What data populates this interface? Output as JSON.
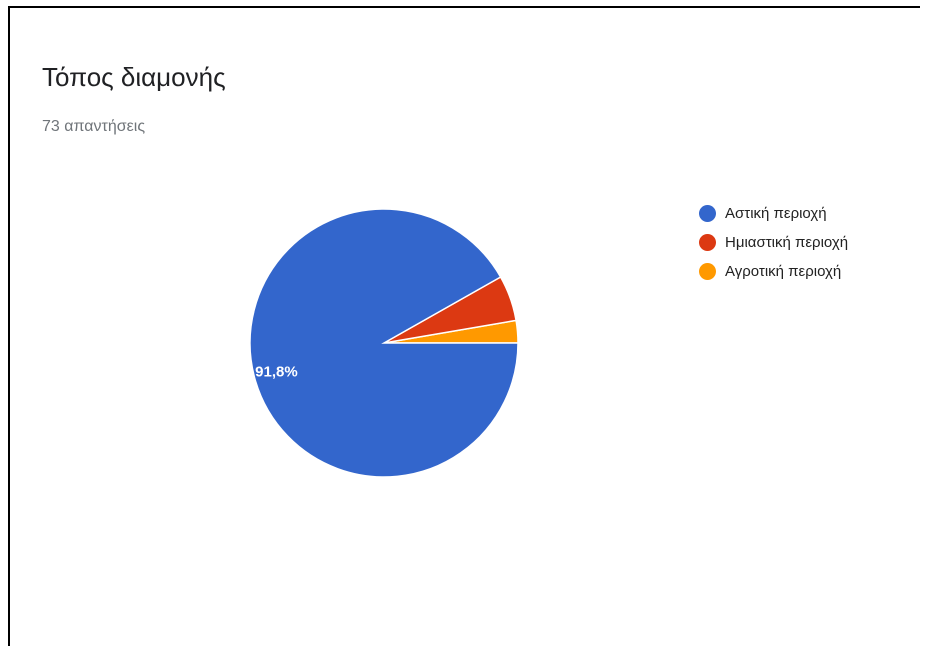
{
  "header": {
    "title": "Τόπος διαμονής",
    "subtitle": "73 απαντήσεις"
  },
  "chart_data": {
    "type": "pie",
    "title": "Τόπος διαμονής",
    "categories": [
      "Αστική περιοχή",
      "Ημιαστική περιοχή",
      "Αγροτική περιοχή"
    ],
    "values": [
      91.8,
      5.5,
      2.7
    ],
    "value_unit": "%",
    "data_labels": [
      "91,8%",
      "",
      ""
    ],
    "colors": [
      "#3366cc",
      "#dc3912",
      "#ff9900"
    ],
    "legend_position": "right"
  }
}
